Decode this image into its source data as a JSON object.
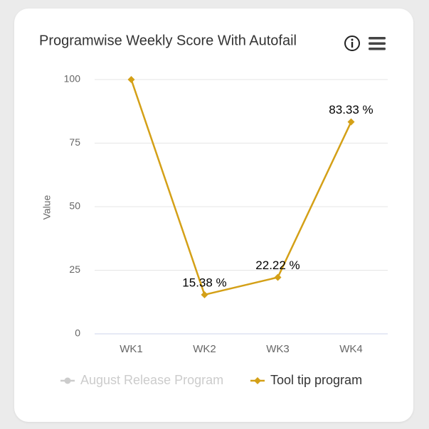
{
  "chart_data": {
    "type": "line",
    "title": "Programwise Weekly Score With Autofail",
    "y_label": "Value",
    "categories": [
      "WK1",
      "WK2",
      "WK3",
      "WK4"
    ],
    "series": [
      {
        "name": "August Release Program",
        "color": "#cccccc",
        "hidden": true,
        "values": [
          null,
          null,
          null,
          null
        ]
      },
      {
        "name": "Tool tip program",
        "color": "#d4a017",
        "values": [
          100,
          15.38,
          22.22,
          83.33
        ],
        "value_labels": [
          null,
          "15.38 %",
          "22.22 %",
          "83.33 %"
        ]
      }
    ],
    "ylim": [
      0,
      100
    ],
    "yticks": [
      0,
      25,
      50,
      75,
      100
    ],
    "grid": true,
    "legend": "bottom"
  }
}
